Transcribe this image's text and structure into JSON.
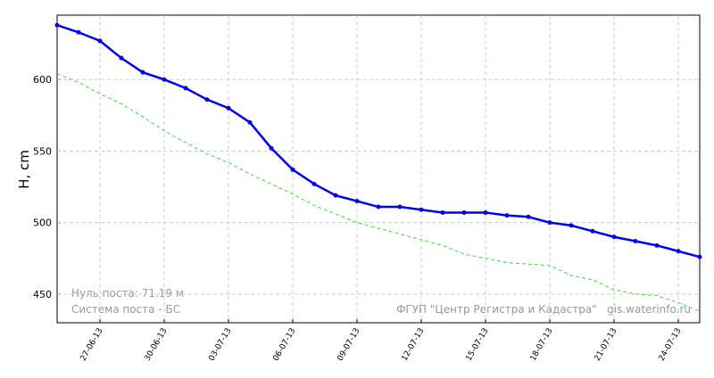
{
  "chart_data": {
    "type": "line",
    "y_label": "H, cm",
    "annotations": [
      "Нуль поста: 71.19 м",
      "Система поста - БС",
      "ФГУП \"Центр Регистра и Кадастра\"   gis.waterinfo.ru"
    ],
    "categories": [
      null,
      null,
      "27-06-13",
      null,
      null,
      "30-06-13",
      null,
      null,
      "03-07-13",
      null,
      null,
      "06-07-13",
      null,
      null,
      "09-07-13",
      null,
      null,
      "12-07-13",
      null,
      null,
      "15-07-13",
      null,
      null,
      "18-07-13",
      null,
      null,
      "21-07-13",
      null,
      null,
      "24-07-13",
      null
    ],
    "series": [
      {
        "color": "#0000ee",
        "dashed": false,
        "markers": true,
        "values": [
          638,
          633,
          627,
          615,
          605,
          600,
          594,
          586,
          580,
          570,
          552,
          537,
          527,
          519,
          515,
          511,
          511,
          509,
          507,
          507,
          507,
          505,
          504,
          500,
          498,
          494,
          490,
          487,
          484,
          480,
          476
        ]
      },
      {
        "color": "#33dd33",
        "dashed": true,
        "markers": false,
        "values": [
          604,
          598,
          590,
          583,
          574,
          564,
          556,
          548,
          542,
          534,
          527,
          520,
          512,
          506,
          500,
          496,
          492,
          488,
          484,
          478,
          475,
          472,
          471,
          470,
          463,
          460,
          453,
          450,
          449,
          444,
          438
        ]
      }
    ],
    "ylim": [
      430,
      645
    ],
    "yticks": [
      450,
      500,
      550,
      600
    ],
    "grid": true
  }
}
